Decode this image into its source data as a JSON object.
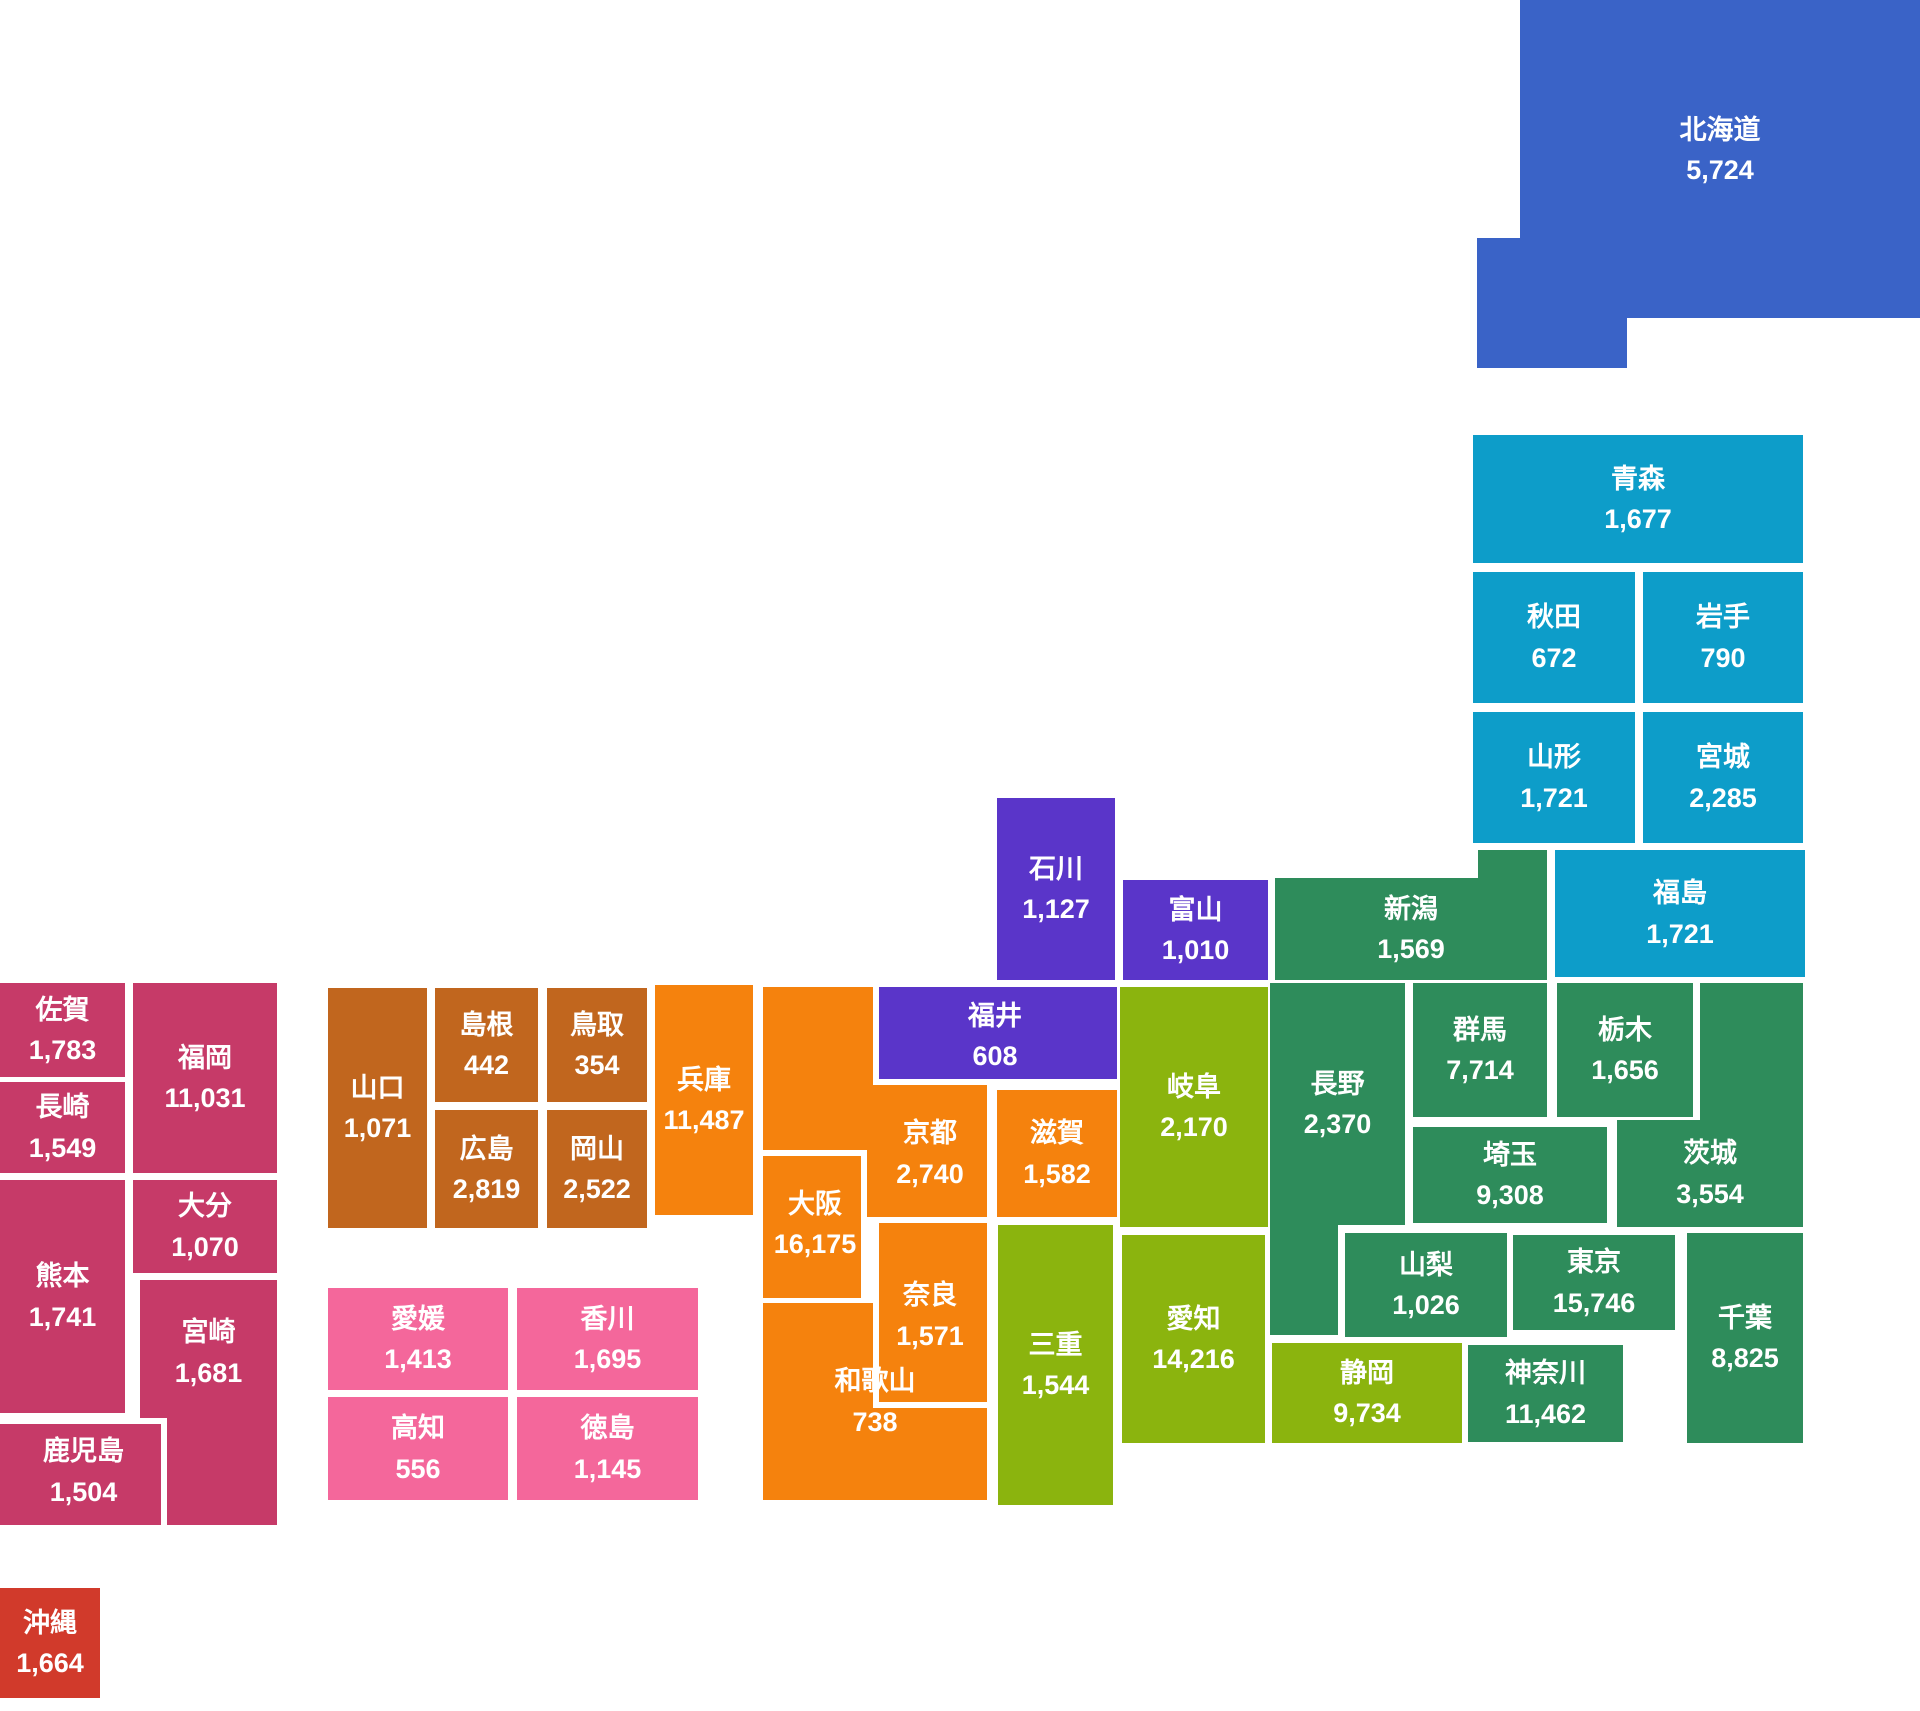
{
  "chart_data": {
    "type": "heatmap",
    "title": "",
    "subtitle": "",
    "legend_position": "none",
    "grid": false,
    "categories": [
      "北海道",
      "青森",
      "秋田",
      "岩手",
      "山形",
      "宮城",
      "福島",
      "新潟",
      "石川",
      "富山",
      "福井",
      "長野",
      "群馬",
      "栃木",
      "埼玉",
      "茨城",
      "山梨",
      "東京",
      "千葉",
      "神奈川",
      "静岡",
      "岐阜",
      "愛知",
      "三重",
      "滋賀",
      "京都",
      "大阪",
      "奈良",
      "和歌山",
      "兵庫",
      "鳥取",
      "島根",
      "岡山",
      "広島",
      "山口",
      "香川",
      "愛媛",
      "徳島",
      "高知",
      "福岡",
      "佐賀",
      "長崎",
      "熊本",
      "大分",
      "宮崎",
      "鹿児島",
      "沖縄"
    ],
    "values": [
      5724,
      1677,
      672,
      790,
      1721,
      2285,
      1721,
      1569,
      1127,
      1010,
      608,
      2370,
      7714,
      1656,
      9308,
      3554,
      1026,
      15746,
      8825,
      11462,
      9734,
      2170,
      14216,
      1544,
      1582,
      2740,
      16175,
      1571,
      738,
      11487,
      354,
      442,
      2522,
      2819,
      1071,
      1695,
      1413,
      1145,
      556,
      11031,
      1783,
      1549,
      1741,
      1070,
      1681,
      1504,
      1664
    ]
  },
  "region_colors": {
    "hokkaido": "#3A63C7",
    "tohoku": "#0D9DC9",
    "kanto": "#2E8C5B",
    "hokuriku": "#5A35C9",
    "tokai": "#8BB40E",
    "kansai": "#F5820D",
    "chugoku": "#C1661E",
    "shikoku": "#F4679B",
    "kyushu": "#C63A68",
    "okinawa": "#D13A2B"
  },
  "prefectures": [
    {
      "id": "hokkaido",
      "name": "北海道",
      "value": "5,724",
      "region": "hokkaido"
    },
    {
      "id": "aomori",
      "name": "青森",
      "value": "1,677",
      "region": "tohoku"
    },
    {
      "id": "akita",
      "name": "秋田",
      "value": "672",
      "region": "tohoku"
    },
    {
      "id": "iwate",
      "name": "岩手",
      "value": "790",
      "region": "tohoku"
    },
    {
      "id": "yamagata",
      "name": "山形",
      "value": "1,721",
      "region": "tohoku"
    },
    {
      "id": "miyagi",
      "name": "宮城",
      "value": "2,285",
      "region": "tohoku"
    },
    {
      "id": "fukushima",
      "name": "福島",
      "value": "1,721",
      "region": "tohoku"
    },
    {
      "id": "niigata",
      "name": "新潟",
      "value": "1,569",
      "region": "kanto"
    },
    {
      "id": "ishikawa",
      "name": "石川",
      "value": "1,127",
      "region": "hokuriku"
    },
    {
      "id": "toyama",
      "name": "富山",
      "value": "1,010",
      "region": "hokuriku"
    },
    {
      "id": "fukui",
      "name": "福井",
      "value": "608",
      "region": "hokuriku"
    },
    {
      "id": "nagano",
      "name": "長野",
      "value": "2,370",
      "region": "kanto"
    },
    {
      "id": "gunma",
      "name": "群馬",
      "value": "7,714",
      "region": "kanto"
    },
    {
      "id": "tochigi",
      "name": "栃木",
      "value": "1,656",
      "region": "kanto"
    },
    {
      "id": "saitama",
      "name": "埼玉",
      "value": "9,308",
      "region": "kanto"
    },
    {
      "id": "ibaraki",
      "name": "茨城",
      "value": "3,554",
      "region": "kanto"
    },
    {
      "id": "yamanashi",
      "name": "山梨",
      "value": "1,026",
      "region": "kanto"
    },
    {
      "id": "tokyo",
      "name": "東京",
      "value": "15,746",
      "region": "kanto"
    },
    {
      "id": "chiba",
      "name": "千葉",
      "value": "8,825",
      "region": "kanto"
    },
    {
      "id": "kanagawa",
      "name": "神奈川",
      "value": "11,462",
      "region": "kanto"
    },
    {
      "id": "shizuoka",
      "name": "静岡",
      "value": "9,734",
      "region": "tokai"
    },
    {
      "id": "gifu",
      "name": "岐阜",
      "value": "2,170",
      "region": "tokai"
    },
    {
      "id": "aichi",
      "name": "愛知",
      "value": "14,216",
      "region": "tokai"
    },
    {
      "id": "mie",
      "name": "三重",
      "value": "1,544",
      "region": "tokai"
    },
    {
      "id": "shiga",
      "name": "滋賀",
      "value": "1,582",
      "region": "kansai"
    },
    {
      "id": "kyoto",
      "name": "京都",
      "value": "2,740",
      "region": "kansai"
    },
    {
      "id": "osaka",
      "name": "大阪",
      "value": "16,175",
      "region": "kansai"
    },
    {
      "id": "nara",
      "name": "奈良",
      "value": "1,571",
      "region": "kansai"
    },
    {
      "id": "wakayama",
      "name": "和歌山",
      "value": "738",
      "region": "kansai"
    },
    {
      "id": "hyogo",
      "name": "兵庫",
      "value": "11,487",
      "region": "kansai"
    },
    {
      "id": "tottori",
      "name": "鳥取",
      "value": "354",
      "region": "chugoku"
    },
    {
      "id": "shimane",
      "name": "島根",
      "value": "442",
      "region": "chugoku"
    },
    {
      "id": "okayama",
      "name": "岡山",
      "value": "2,522",
      "region": "chugoku"
    },
    {
      "id": "hiroshima",
      "name": "広島",
      "value": "2,819",
      "region": "chugoku"
    },
    {
      "id": "yamaguchi",
      "name": "山口",
      "value": "1,071",
      "region": "chugoku"
    },
    {
      "id": "kagawa",
      "name": "香川",
      "value": "1,695",
      "region": "shikoku"
    },
    {
      "id": "ehime",
      "name": "愛媛",
      "value": "1,413",
      "region": "shikoku"
    },
    {
      "id": "tokushima",
      "name": "徳島",
      "value": "1,145",
      "region": "shikoku"
    },
    {
      "id": "kochi",
      "name": "高知",
      "value": "556",
      "region": "shikoku"
    },
    {
      "id": "fukuoka",
      "name": "福岡",
      "value": "11,031",
      "region": "kyushu"
    },
    {
      "id": "saga",
      "name": "佐賀",
      "value": "1,783",
      "region": "kyushu"
    },
    {
      "id": "nagasaki",
      "name": "長崎",
      "value": "1,549",
      "region": "kyushu"
    },
    {
      "id": "kumamoto",
      "name": "熊本",
      "value": "1,741",
      "region": "kyushu"
    },
    {
      "id": "oita",
      "name": "大分",
      "value": "1,070",
      "region": "kyushu"
    },
    {
      "id": "miyazaki",
      "name": "宮崎",
      "value": "1,681",
      "region": "kyushu"
    },
    {
      "id": "kagoshima",
      "name": "鹿児島",
      "value": "1,504",
      "region": "kyushu"
    },
    {
      "id": "okinawa",
      "name": "沖縄",
      "value": "1,664",
      "region": "okinawa"
    }
  ]
}
